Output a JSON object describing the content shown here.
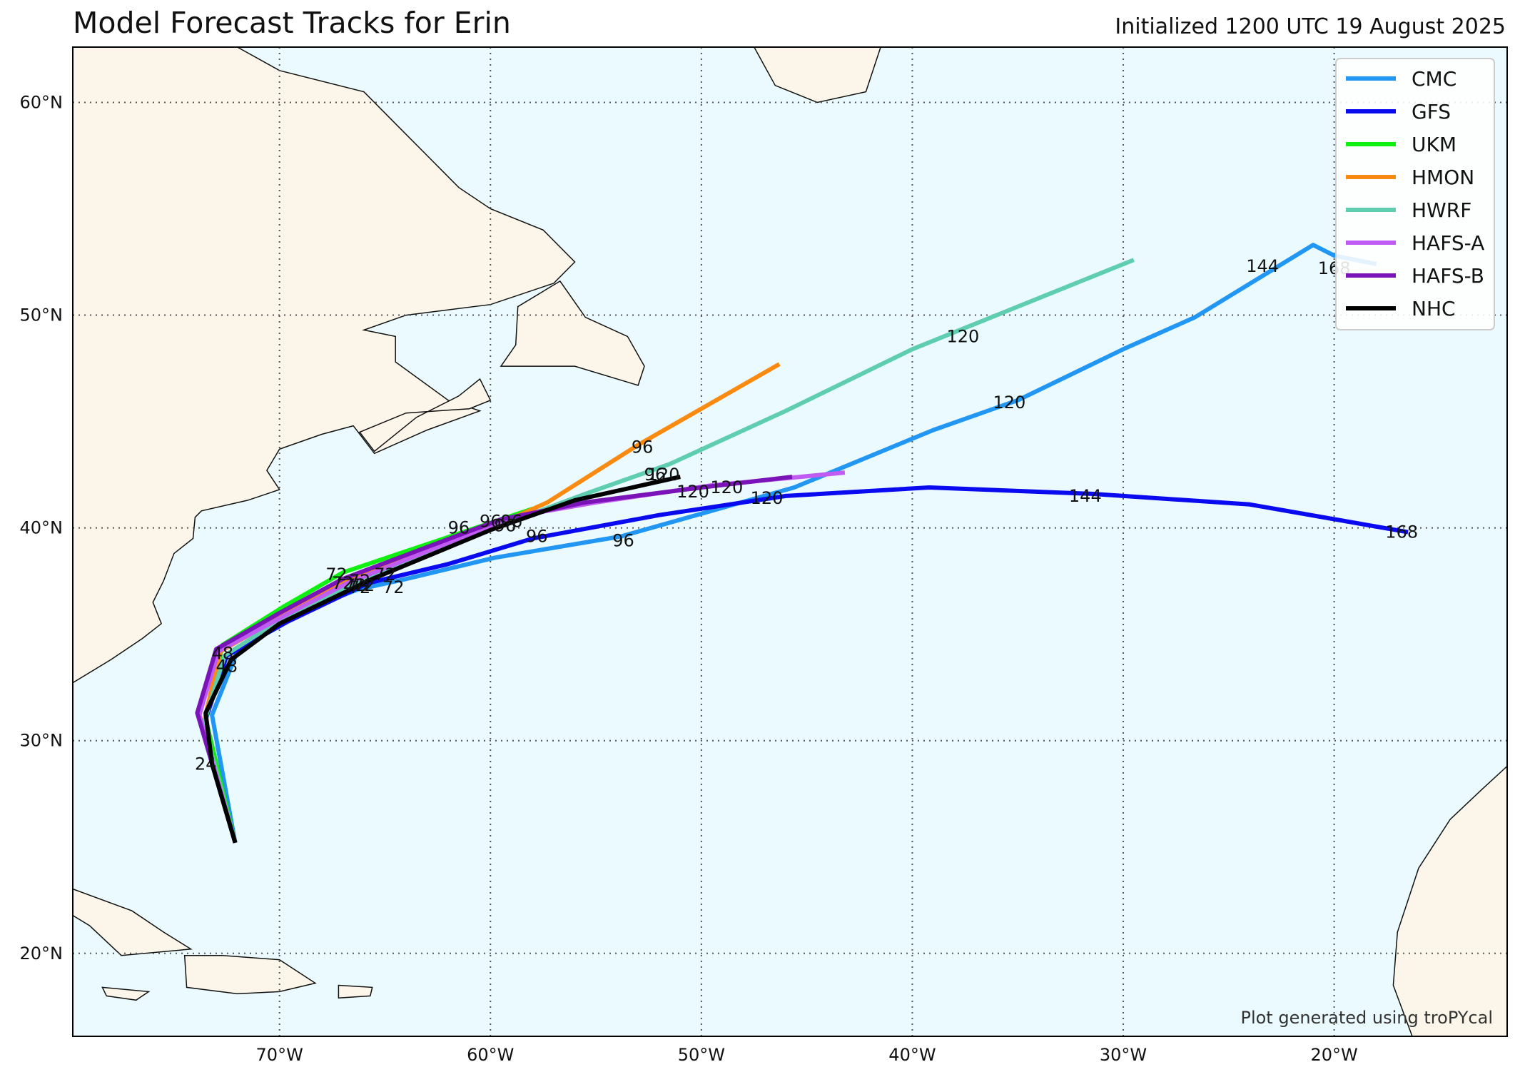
{
  "title": "Model Forecast Tracks for Erin",
  "subtitle": "Initialized 1200 UTC 19 August 2025",
  "credit": "Plot generated using troPYcal",
  "colors": {
    "ocean": "#eafaff",
    "land": "#fcf6ea",
    "coast": "#111111",
    "grid": "#555555"
  },
  "chart_data": {
    "type": "line",
    "xlim": [
      -79.8,
      -11.8
    ],
    "ylim": [
      16.1,
      62.6
    ],
    "x_ticks": [
      -70,
      -60,
      -50,
      -40,
      -30,
      -20
    ],
    "x_tick_labels": [
      "70°W",
      "60°W",
      "50°W",
      "40°W",
      "30°W",
      "20°W"
    ],
    "y_ticks": [
      20,
      30,
      40,
      50,
      60
    ],
    "y_tick_labels": [
      "20°N",
      "30°N",
      "40°N",
      "50°N",
      "60°N"
    ],
    "grid": true,
    "legend_position": "top-right",
    "series": [
      {
        "name": "CMC",
        "color": "#2196f3",
        "points": [
          [
            -72.1,
            25.2
          ],
          [
            -73.2,
            31.2
          ],
          [
            -72.0,
            34.2
          ],
          [
            -69.7,
            35.8
          ],
          [
            -66.3,
            37.1
          ],
          [
            -64.0,
            37.6
          ],
          [
            -59.8,
            38.6
          ],
          [
            -53.8,
            39.6
          ],
          [
            -45.6,
            41.9
          ],
          [
            -39.0,
            44.6
          ],
          [
            -35.0,
            46.0
          ],
          [
            -30.0,
            48.4
          ],
          [
            -26.6,
            49.9
          ],
          [
            -21.0,
            53.3
          ],
          [
            -20.0,
            52.8
          ],
          [
            -18.0,
            52.4
          ]
        ],
        "labels": [
          {
            "t": "144",
            "lon": -23.4,
            "lat": 52.3
          },
          {
            "t": "168",
            "lon": -20.0,
            "lat": 52.2
          },
          {
            "t": "120",
            "lon": -35.4,
            "lat": 45.9
          },
          {
            "t": "96",
            "lon": -53.7,
            "lat": 39.4
          },
          {
            "t": "72",
            "lon": -64.6,
            "lat": 37.2
          }
        ]
      },
      {
        "name": "GFS",
        "color": "#0a0af0",
        "points": [
          [
            -72.1,
            25.2
          ],
          [
            -73.5,
            31.0
          ],
          [
            -72.5,
            34.0
          ],
          [
            -69.6,
            35.6
          ],
          [
            -65.8,
            37.4
          ],
          [
            -62.0,
            38.3
          ],
          [
            -58.0,
            39.5
          ],
          [
            -52.0,
            40.6
          ],
          [
            -46.0,
            41.5
          ],
          [
            -39.2,
            41.9
          ],
          [
            -31.5,
            41.6
          ],
          [
            -24.0,
            41.1
          ],
          [
            -16.5,
            39.8
          ]
        ],
        "labels": [
          {
            "t": "168",
            "lon": -16.8,
            "lat": 39.8
          },
          {
            "t": "144",
            "lon": -31.8,
            "lat": 41.5
          },
          {
            "t": "120",
            "lon": -46.9,
            "lat": 41.4
          },
          {
            "t": "96",
            "lon": -57.8,
            "lat": 39.6
          },
          {
            "t": "72",
            "lon": -66.0,
            "lat": 37.3
          }
        ]
      },
      {
        "name": "UKM",
        "color": "#10f010",
        "points": [
          [
            -72.1,
            25.2
          ],
          [
            -73.5,
            31.0
          ],
          [
            -72.7,
            34.5
          ],
          [
            -69.8,
            36.3
          ],
          [
            -67.0,
            37.9
          ],
          [
            -64.0,
            38.9
          ],
          [
            -61.0,
            39.9
          ],
          [
            -58.0,
            40.9
          ]
        ],
        "labels": [
          {
            "t": "96",
            "lon": -61.5,
            "lat": 40.0
          },
          {
            "t": "72",
            "lon": -67.3,
            "lat": 37.8
          },
          {
            "t": "48",
            "lon": -72.7,
            "lat": 34.1
          }
        ]
      },
      {
        "name": "HMON",
        "color": "#fb8a10",
        "points": [
          [
            -72.1,
            25.2
          ],
          [
            -73.6,
            30.8
          ],
          [
            -72.8,
            34.2
          ],
          [
            -69.8,
            35.9
          ],
          [
            -66.8,
            37.6
          ],
          [
            -63.3,
            38.8
          ],
          [
            -60.0,
            40.0
          ],
          [
            -57.3,
            41.2
          ],
          [
            -53.0,
            43.9
          ],
          [
            -46.3,
            47.7
          ]
        ],
        "labels": [
          {
            "t": "96",
            "lon": -52.8,
            "lat": 43.8
          },
          {
            "t": "72",
            "lon": -66.2,
            "lat": 37.5
          }
        ]
      },
      {
        "name": "HWRF",
        "color": "#5ecdb0",
        "points": [
          [
            -72.1,
            25.2
          ],
          [
            -73.6,
            30.8
          ],
          [
            -72.6,
            34.0
          ],
          [
            -69.6,
            35.9
          ],
          [
            -66.2,
            37.5
          ],
          [
            -62.8,
            38.9
          ],
          [
            -59.0,
            40.3
          ],
          [
            -55.5,
            41.6
          ],
          [
            -51.5,
            43.0
          ],
          [
            -46.0,
            45.5
          ],
          [
            -40.0,
            48.4
          ],
          [
            -34.0,
            50.8
          ],
          [
            -29.5,
            52.6
          ]
        ],
        "labels": [
          {
            "t": "120",
            "lon": -37.6,
            "lat": 49.0
          },
          {
            "t": "96",
            "lon": -52.2,
            "lat": 42.5
          },
          {
            "t": "72",
            "lon": -66.4,
            "lat": 37.3
          }
        ]
      },
      {
        "name": "HAFS-A",
        "color": "#c15cf2",
        "points": [
          [
            -72.1,
            25.2
          ],
          [
            -73.8,
            31.2
          ],
          [
            -72.9,
            34.2
          ],
          [
            -69.9,
            35.8
          ],
          [
            -66.8,
            37.4
          ],
          [
            -63.0,
            38.9
          ],
          [
            -59.0,
            40.5
          ],
          [
            -55.0,
            41.2
          ],
          [
            -49.5,
            42.0
          ],
          [
            -43.2,
            42.6
          ]
        ],
        "labels": [
          {
            "t": "120",
            "lon": -48.8,
            "lat": 41.9
          },
          {
            "t": "96",
            "lon": -59.0,
            "lat": 40.3
          },
          {
            "t": "72",
            "lon": -67.0,
            "lat": 37.4
          }
        ]
      },
      {
        "name": "HAFS-B",
        "color": "#7a14b8",
        "points": [
          [
            -72.1,
            25.2
          ],
          [
            -73.9,
            31.3
          ],
          [
            -73.0,
            34.3
          ],
          [
            -70.0,
            36.0
          ],
          [
            -67.0,
            37.6
          ],
          [
            -63.0,
            39.1
          ],
          [
            -59.5,
            40.4
          ],
          [
            -55.5,
            41.2
          ],
          [
            -50.0,
            41.9
          ],
          [
            -45.7,
            42.4
          ]
        ],
        "labels": [
          {
            "t": "120",
            "lon": -50.4,
            "lat": 41.7
          },
          {
            "t": "96",
            "lon": -59.3,
            "lat": 40.1
          },
          {
            "t": "72",
            "lon": -65.0,
            "lat": 37.8
          }
        ]
      },
      {
        "name": "NHC",
        "color": "#000000",
        "points": [
          [
            -72.1,
            25.2
          ],
          [
            -73.2,
            28.9
          ],
          [
            -73.5,
            31.3
          ],
          [
            -72.3,
            33.8
          ],
          [
            -70.0,
            35.5
          ],
          [
            -65.6,
            37.6
          ],
          [
            -60.0,
            39.9
          ],
          [
            -56.0,
            41.3
          ],
          [
            -51.0,
            42.4
          ]
        ],
        "labels": [
          {
            "t": "120",
            "lon": -51.8,
            "lat": 42.5
          },
          {
            "t": "96",
            "lon": -60.0,
            "lat": 40.3
          },
          {
            "t": "72",
            "lon": -66.2,
            "lat": 37.2
          },
          {
            "t": "48",
            "lon": -72.5,
            "lat": 33.5
          },
          {
            "t": "24",
            "lon": -73.5,
            "lat": 28.9
          }
        ]
      }
    ]
  },
  "legend": {
    "items": [
      {
        "label": "CMC",
        "color": "#2196f3"
      },
      {
        "label": "GFS",
        "color": "#0a0af0"
      },
      {
        "label": "UKM",
        "color": "#10f010"
      },
      {
        "label": "HMON",
        "color": "#fb8a10"
      },
      {
        "label": "HWRF",
        "color": "#5ecdb0"
      },
      {
        "label": "HAFS-A",
        "color": "#c15cf2"
      },
      {
        "label": "HAFS-B",
        "color": "#7a14b8"
      },
      {
        "label": "NHC",
        "color": "#000000"
      }
    ]
  }
}
